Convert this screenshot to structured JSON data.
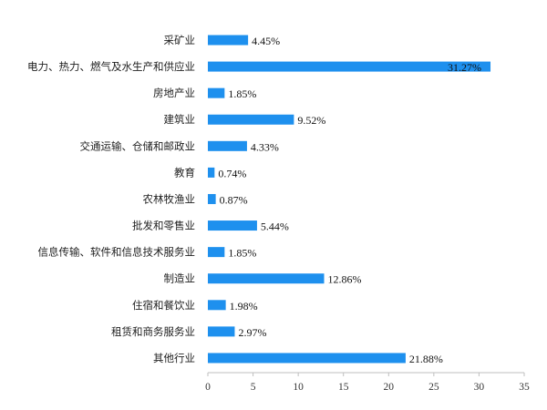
{
  "chart_data": {
    "type": "bar",
    "orientation": "horizontal",
    "title": "",
    "xlabel": "",
    "ylabel": "",
    "categories": [
      "采矿业",
      "电力、热力、燃气及水生产和供应业",
      "房地产业",
      "建筑业",
      "交通运输、仓储和邮政业",
      "教育",
      "农林牧渔业",
      "批发和零售业",
      "信息传输、软件和信息技术服务业",
      "制造业",
      "住宿和餐饮业",
      "租赁和商务服务业",
      "其他行业"
    ],
    "values": [
      4.45,
      31.27,
      1.85,
      9.52,
      4.33,
      0.74,
      0.87,
      5.44,
      1.85,
      12.86,
      1.98,
      2.97,
      21.88
    ],
    "value_labels": [
      "4.45%",
      "31.27%",
      "1.85%",
      "9.52%",
      "4.33%",
      "0.74%",
      "0.87%",
      "5.44%",
      "1.85%",
      "12.86%",
      "1.98%",
      "2.97%",
      "21.88%"
    ],
    "xlim": [
      0,
      35
    ],
    "xticks": [
      0,
      5,
      10,
      15,
      20,
      25,
      30,
      35
    ],
    "xtick_labels": [
      "0",
      "5",
      "10",
      "15",
      "20",
      "25",
      "30",
      "35"
    ],
    "grid": false,
    "legend": "none",
    "bar_color": "#1e90ee"
  }
}
